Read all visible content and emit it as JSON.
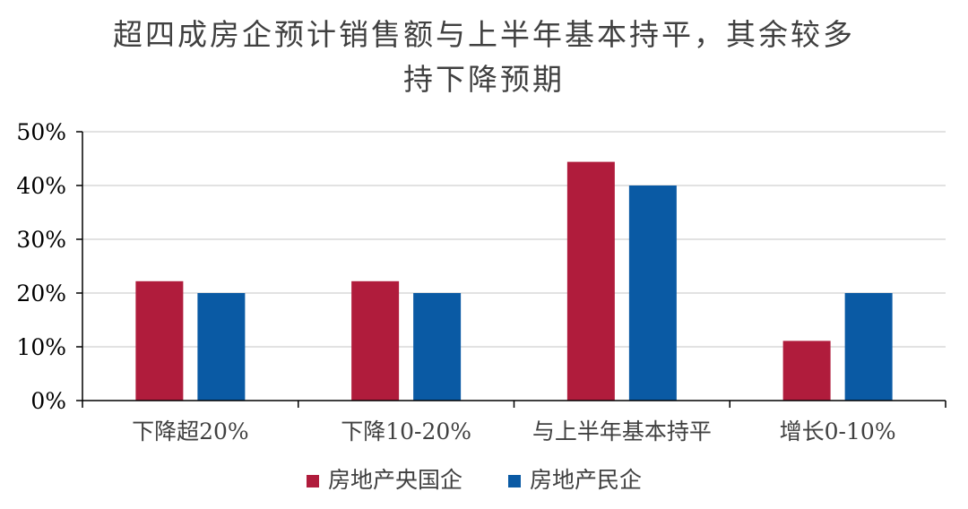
{
  "chart_data": {
    "type": "bar",
    "title_lines": [
      "超四成房企预计销售额与上半年基本持平，其余较多",
      "持下降预期"
    ],
    "categories": [
      "下降超20%",
      "下降10-20%",
      "与上半年基本持平",
      "增长0-10%"
    ],
    "series": [
      {
        "name": "房地产央国企",
        "values": [
          22.2,
          22.2,
          44.4,
          11.1
        ],
        "color": "#B01C3C"
      },
      {
        "name": "房地产民企",
        "values": [
          20,
          20,
          40,
          20
        ],
        "color": "#0A5AA4"
      }
    ],
    "y_ticks": [
      "0%",
      "10%",
      "20%",
      "30%",
      "40%",
      "50%"
    ],
    "ylim": [
      0,
      50
    ],
    "grid": true,
    "legend_position": "bottom"
  }
}
